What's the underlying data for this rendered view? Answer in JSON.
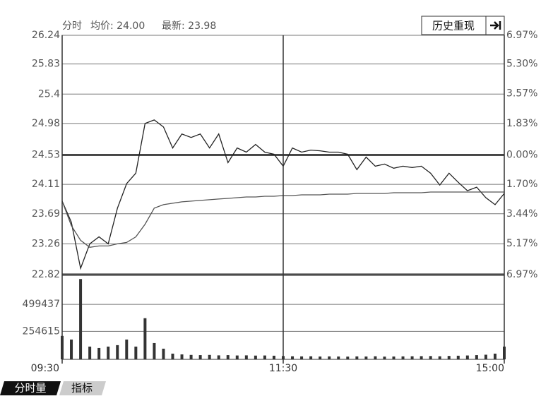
{
  "header": {
    "title": "分时",
    "avg_label": "均价: 24.00",
    "latest_label": "最新: 23.98"
  },
  "toolbar": {
    "history_button": "历史重现"
  },
  "tabs": [
    "分时量",
    "指标"
  ],
  "chart_data": [
    {
      "type": "line",
      "x": [
        0,
        5,
        10,
        15,
        20,
        25,
        30,
        35,
        40,
        45,
        50,
        55,
        60,
        65,
        70,
        75,
        80,
        85,
        90,
        95,
        100,
        105,
        110,
        115,
        120,
        125,
        130,
        135,
        140,
        145,
        150,
        155,
        160,
        165,
        170,
        175,
        180,
        185,
        190,
        195,
        200,
        205,
        210,
        215,
        220,
        225,
        230,
        235,
        240
      ],
      "xlim": [
        0,
        240
      ],
      "ylim": [
        22.82,
        26.24
      ],
      "yticks": [
        26.24,
        25.83,
        25.4,
        24.98,
        24.53,
        24.11,
        23.69,
        23.26,
        22.82
      ],
      "y2lim": [
        -6.97,
        6.97
      ],
      "y2ticks": [
        {
          "value": 6.97,
          "label": "6.97%"
        },
        {
          "value": 5.3,
          "label": "5.30%"
        },
        {
          "value": 3.57,
          "label": "3.57%"
        },
        {
          "value": 1.83,
          "label": "1.83%"
        },
        {
          "value": 0,
          "label": "0.00%"
        },
        {
          "value": -1.7,
          "label": "1.70%"
        },
        {
          "value": -3.44,
          "label": "3.44%"
        },
        {
          "value": -5.17,
          "label": "5.17%"
        },
        {
          "value": -6.97,
          "label": "6.97%"
        }
      ],
      "grid": true,
      "series": [
        {
          "name": "最新",
          "color": "#222222",
          "values": [
            23.87,
            23.57,
            22.91,
            23.26,
            23.36,
            23.26,
            23.77,
            24.12,
            24.27,
            24.98,
            25.03,
            24.93,
            24.63,
            24.83,
            24.78,
            24.83,
            24.63,
            24.83,
            24.42,
            24.63,
            24.57,
            24.68,
            24.57,
            24.54,
            24.37,
            24.63,
            24.57,
            24.6,
            24.59,
            24.57,
            24.57,
            24.54,
            24.32,
            24.5,
            24.37,
            24.4,
            24.34,
            24.37,
            24.35,
            24.37,
            24.27,
            24.1,
            24.27,
            24.14,
            24.02,
            24.07,
            23.92,
            23.82,
            23.98
          ]
        },
        {
          "name": "均价",
          "color": "#555555",
          "values": [
            23.87,
            23.52,
            23.31,
            23.21,
            23.23,
            23.23,
            23.26,
            23.28,
            23.36,
            23.54,
            23.77,
            23.82,
            23.84,
            23.86,
            23.87,
            23.88,
            23.89,
            23.9,
            23.91,
            23.92,
            23.93,
            23.93,
            23.94,
            23.94,
            23.95,
            23.95,
            23.96,
            23.96,
            23.96,
            23.97,
            23.97,
            23.97,
            23.98,
            23.98,
            23.98,
            23.98,
            23.99,
            23.99,
            23.99,
            23.99,
            24.0,
            24.0,
            24.0,
            24.0,
            24.0,
            24.0,
            24.0,
            24.0,
            24.0
          ]
        }
      ]
    },
    {
      "type": "bar",
      "x": [
        0,
        5,
        10,
        15,
        20,
        25,
        30,
        35,
        40,
        45,
        50,
        55,
        60,
        65,
        70,
        75,
        80,
        85,
        90,
        95,
        100,
        105,
        110,
        115,
        120,
        125,
        130,
        135,
        140,
        145,
        150,
        155,
        160,
        165,
        170,
        175,
        180,
        185,
        190,
        195,
        200,
        205,
        210,
        215,
        220,
        225,
        230,
        235,
        240
      ],
      "xlim": [
        0,
        240
      ],
      "xticks": [
        {
          "value": 0,
          "label": "09:30"
        },
        {
          "value": 120,
          "label": "11:30"
        },
        {
          "value": 240,
          "label": "15:00"
        }
      ],
      "ylim": [
        0,
        770000
      ],
      "yticks": [
        499437,
        254615
      ],
      "grid": true,
      "color": "#333333",
      "values": [
        213000,
        180000,
        730000,
        116000,
        103000,
        116000,
        129000,
        180000,
        116000,
        374000,
        148000,
        97000,
        52000,
        45000,
        40000,
        38000,
        40000,
        36000,
        38000,
        35000,
        36000,
        34000,
        35000,
        33000,
        30000,
        28000,
        27000,
        28000,
        26000,
        27000,
        26000,
        25000,
        27000,
        26000,
        28000,
        25000,
        26000,
        27000,
        28000,
        29000,
        30000,
        28000,
        31000,
        33000,
        35000,
        38000,
        42000,
        52000,
        116000
      ]
    }
  ]
}
